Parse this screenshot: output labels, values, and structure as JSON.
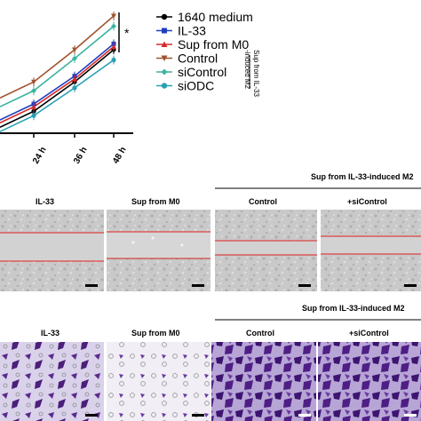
{
  "chart_data": {
    "type": "line",
    "x_labels": [
      "24 h",
      "36 h",
      "48 h"
    ],
    "significance": "*",
    "legend_group_label": "Sup from IL-33 -induced M2",
    "series": [
      {
        "name": "1640 medium",
        "color": "#000000",
        "marker": "circle",
        "values": [
          0.5,
          0.7,
          0.92
        ]
      },
      {
        "name": "IL-33",
        "color": "#1f3fbf",
        "marker": "square",
        "values": [
          0.55,
          0.74,
          0.96
        ]
      },
      {
        "name": "Sup from M0",
        "color": "#d62828",
        "marker": "triangle-up",
        "values": [
          0.53,
          0.72,
          0.94
        ]
      },
      {
        "name": "Control",
        "color": "#a0522d",
        "marker": "triangle-down",
        "values": [
          0.7,
          0.92,
          1.15
        ]
      },
      {
        "name": "siControl",
        "color": "#3cb4a0",
        "marker": "diamond",
        "values": [
          0.64,
          0.86,
          1.08
        ]
      },
      {
        "name": "siODC",
        "color": "#2a9fb5",
        "marker": "circle",
        "values": [
          0.47,
          0.66,
          0.85
        ]
      }
    ]
  },
  "wound_panel": {
    "group_header": "Sup from IL-33-induced M2",
    "labels": [
      "IL-33",
      "Sup from M0",
      "Control",
      "+siControl"
    ]
  },
  "transwell_panel": {
    "group_header": "Sup from IL-33-induced M2",
    "labels": [
      "IL-33",
      "Sup from M0",
      "Control",
      "+siControl"
    ]
  }
}
